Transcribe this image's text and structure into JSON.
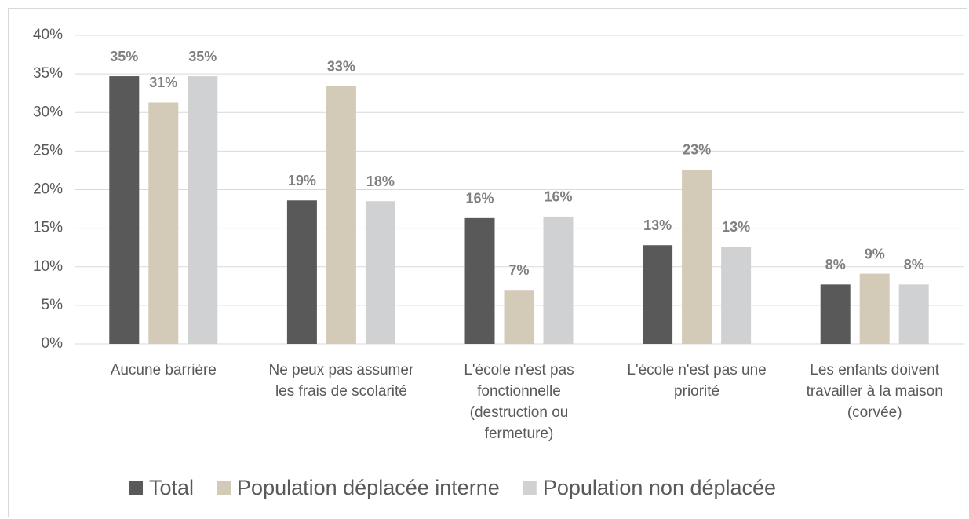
{
  "chart_data": {
    "type": "bar",
    "categories": [
      "Aucune barrière",
      "Ne peux pas assumer les frais de scolarité",
      "L'école n'est pas fonctionnelle (destruction ou fermeture)",
      "L'école n'est pas une priorité",
      "Les enfants doivent travailler à la maison (corvée)"
    ],
    "series": [
      {
        "name": "Total",
        "color": "#595959",
        "values": [
          34.7,
          18.6,
          16.3,
          12.8,
          7.7
        ],
        "value_labels": [
          "35%",
          "19%",
          "16%",
          "13%",
          "8%"
        ]
      },
      {
        "name": "Population déplacée interne",
        "color": "#d3cbb8",
        "values": [
          31.3,
          33.4,
          7.0,
          22.6,
          9.1
        ],
        "value_labels": [
          "31%",
          "33%",
          "7%",
          "23%",
          "9%"
        ]
      },
      {
        "name": "Population non déplacée",
        "color": "#d0d1d3",
        "values": [
          34.7,
          18.5,
          16.5,
          12.6,
          7.7
        ],
        "value_labels": [
          "35%",
          "18%",
          "16%",
          "13%",
          "8%"
        ]
      }
    ],
    "ylim": [
      0,
      40
    ],
    "yticks": [
      {
        "value": 0,
        "label": "0%"
      },
      {
        "value": 5,
        "label": "5%"
      },
      {
        "value": 10,
        "label": "10%"
      },
      {
        "value": 15,
        "label": "15%"
      },
      {
        "value": 20,
        "label": "20%"
      },
      {
        "value": 25,
        "label": "25%"
      },
      {
        "value": 30,
        "label": "30%"
      },
      {
        "value": 35,
        "label": "35%"
      },
      {
        "value": 40,
        "label": "40%"
      }
    ],
    "grid": true,
    "legend": "bottom"
  }
}
